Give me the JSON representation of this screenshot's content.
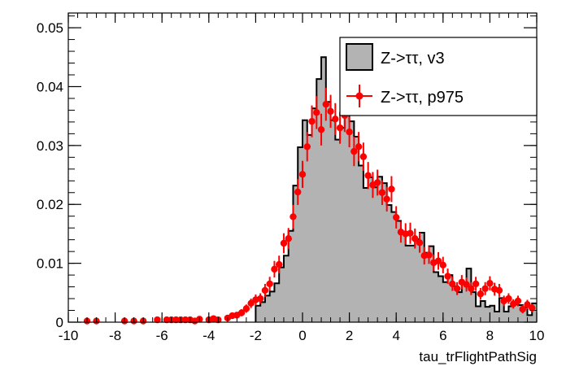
{
  "chart_data": {
    "type": "bar",
    "xlabel": "tau_trFlightPathSig",
    "ylabel": "",
    "xlim": [
      -10,
      10
    ],
    "ylim": [
      0,
      0.0525
    ],
    "x_ticks": [
      -10,
      -8,
      -6,
      -4,
      -2,
      0,
      2,
      4,
      6,
      8,
      10
    ],
    "x_tick_labels": [
      "-10",
      "-8",
      "-6",
      "-4",
      "-2",
      "0",
      "2",
      "4",
      "6",
      "8",
      "10"
    ],
    "y_ticks": [
      0,
      0.01,
      0.02,
      0.03,
      0.04,
      0.05
    ],
    "y_tick_labels": [
      "0",
      "0.01",
      "0.02",
      "0.03",
      "0.04",
      "0.05"
    ],
    "legend": {
      "position": "top-right"
    },
    "series": [
      {
        "name": "Z->ττ, v3",
        "style": "filled-histogram",
        "fill": "#b3b3b3",
        "line": "#000000",
        "bin_width": 0.2,
        "bins_x": [
          -2.0,
          -1.8,
          -1.6,
          -1.4,
          -1.2,
          -1.0,
          -0.8,
          -0.6,
          -0.4,
          -0.2,
          0.0,
          0.2,
          0.4,
          0.6,
          0.8,
          1.0,
          1.2,
          1.4,
          1.6,
          1.8,
          2.0,
          2.2,
          2.4,
          2.6,
          2.8,
          3.0,
          3.2,
          3.4,
          3.6,
          3.8,
          4.0,
          4.2,
          4.4,
          4.6,
          4.8,
          5.0,
          5.2,
          5.4,
          5.6,
          5.8,
          6.0,
          6.2,
          6.4,
          6.6,
          6.8,
          7.0,
          7.2,
          7.4,
          7.6,
          7.8,
          8.0,
          8.2,
          8.4,
          8.6,
          8.8,
          9.0,
          9.2,
          9.4,
          9.6,
          9.8
        ],
        "bins_y": [
          0.0028,
          0.0034,
          0.0045,
          0.0052,
          0.0066,
          0.0093,
          0.0113,
          0.0155,
          0.0232,
          0.0297,
          0.0343,
          0.0318,
          0.0363,
          0.0413,
          0.045,
          0.0374,
          0.0343,
          0.031,
          0.033,
          0.0376,
          0.0341,
          0.0315,
          0.0266,
          0.0228,
          0.0246,
          0.0229,
          0.0247,
          0.0236,
          0.0199,
          0.0187,
          0.0172,
          0.0151,
          0.013,
          0.013,
          0.0141,
          0.0152,
          0.0118,
          0.0129,
          0.0085,
          0.0078,
          0.0068,
          0.008,
          0.0061,
          0.0051,
          0.0065,
          0.0091,
          0.0051,
          0.0027,
          0.0036,
          0.0026,
          0.0028,
          0.0018,
          0.0041,
          0.0018,
          0.0027,
          0.003,
          0.0029,
          0.0025,
          0.0012,
          0.0032
        ]
      },
      {
        "name": "Z->ττ, p975",
        "style": "points-with-errors",
        "color": "#ff0000",
        "x": [
          -9.2,
          -8.8,
          -7.6,
          -7.2,
          -6.8,
          -6.2,
          -5.8,
          -5.6,
          -5.4,
          -5.2,
          -5.0,
          -4.8,
          -4.6,
          -4.4,
          -4.0,
          -3.8,
          -3.6,
          -3.2,
          -3.0,
          -2.8,
          -2.6,
          -2.4,
          -2.2,
          -2.0,
          -1.8,
          -1.6,
          -1.4,
          -1.2,
          -1.0,
          -0.8,
          -0.6,
          -0.4,
          -0.2,
          0.0,
          0.2,
          0.4,
          0.6,
          0.8,
          1.0,
          1.2,
          1.4,
          1.6,
          1.8,
          2.0,
          2.2,
          2.4,
          2.6,
          2.8,
          3.0,
          3.2,
          3.4,
          3.6,
          3.8,
          4.0,
          4.2,
          4.4,
          4.6,
          4.8,
          5.0,
          5.2,
          5.4,
          5.6,
          5.8,
          6.0,
          6.2,
          6.4,
          6.6,
          6.8,
          7.0,
          7.2,
          7.4,
          7.6,
          7.8,
          8.0,
          8.2,
          8.4,
          8.6,
          8.8,
          9.0,
          9.2,
          9.4,
          9.6,
          9.8
        ],
        "y": [
          0.0002,
          0.0002,
          0.0002,
          0.0002,
          0.0002,
          0.0004,
          0.0004,
          0.0004,
          0.0004,
          0.0004,
          0.0004,
          0.0004,
          0.0002,
          0.0005,
          0.0004,
          0.0006,
          0.0004,
          0.0007,
          0.0011,
          0.0012,
          0.0016,
          0.0023,
          0.0032,
          0.0038,
          0.004,
          0.0054,
          0.0065,
          0.009,
          0.0098,
          0.0134,
          0.0142,
          0.0179,
          0.0221,
          0.0251,
          0.0298,
          0.0341,
          0.0356,
          0.0327,
          0.037,
          0.0358,
          0.0345,
          0.033,
          0.0351,
          0.0323,
          0.029,
          0.0298,
          0.0281,
          0.0249,
          0.0233,
          0.0237,
          0.022,
          0.0209,
          0.0226,
          0.0178,
          0.0153,
          0.015,
          0.0151,
          0.0142,
          0.0135,
          0.0113,
          0.0114,
          0.0101,
          0.0104,
          0.0097,
          0.0078,
          0.0065,
          0.0057,
          0.0068,
          0.0064,
          0.0057,
          0.0065,
          0.0048,
          0.0057,
          0.0066,
          0.0056,
          0.0054,
          0.0036,
          0.004,
          0.0031,
          0.0036,
          0.0022,
          0.003,
          0.0024
        ],
        "err": [
          0.0002,
          0.0002,
          0.0002,
          0.0002,
          0.0002,
          0.0003,
          0.0003,
          0.0003,
          0.0003,
          0.0003,
          0.0003,
          0.0003,
          0.0002,
          0.0003,
          0.0003,
          0.0003,
          0.0003,
          0.0004,
          0.0005,
          0.0005,
          0.0006,
          0.0007,
          0.0008,
          0.0009,
          0.0009,
          0.0011,
          0.0012,
          0.0014,
          0.0015,
          0.0017,
          0.0018,
          0.002,
          0.0022,
          0.0023,
          0.0025,
          0.0027,
          0.0028,
          0.0027,
          0.0028,
          0.0028,
          0.0027,
          0.0027,
          0.0028,
          0.0026,
          0.0025,
          0.0025,
          0.0024,
          0.0023,
          0.0022,
          0.0022,
          0.0021,
          0.0021,
          0.0022,
          0.0019,
          0.0018,
          0.0018,
          0.0018,
          0.0017,
          0.0017,
          0.0015,
          0.0015,
          0.0014,
          0.0015,
          0.0014,
          0.0013,
          0.0012,
          0.0011,
          0.0012,
          0.0012,
          0.0011,
          0.0012,
          0.001,
          0.0011,
          0.0012,
          0.0011,
          0.0011,
          0.0009,
          0.0009,
          0.0008,
          0.0009,
          0.0007,
          0.0008,
          0.0007
        ]
      }
    ]
  }
}
